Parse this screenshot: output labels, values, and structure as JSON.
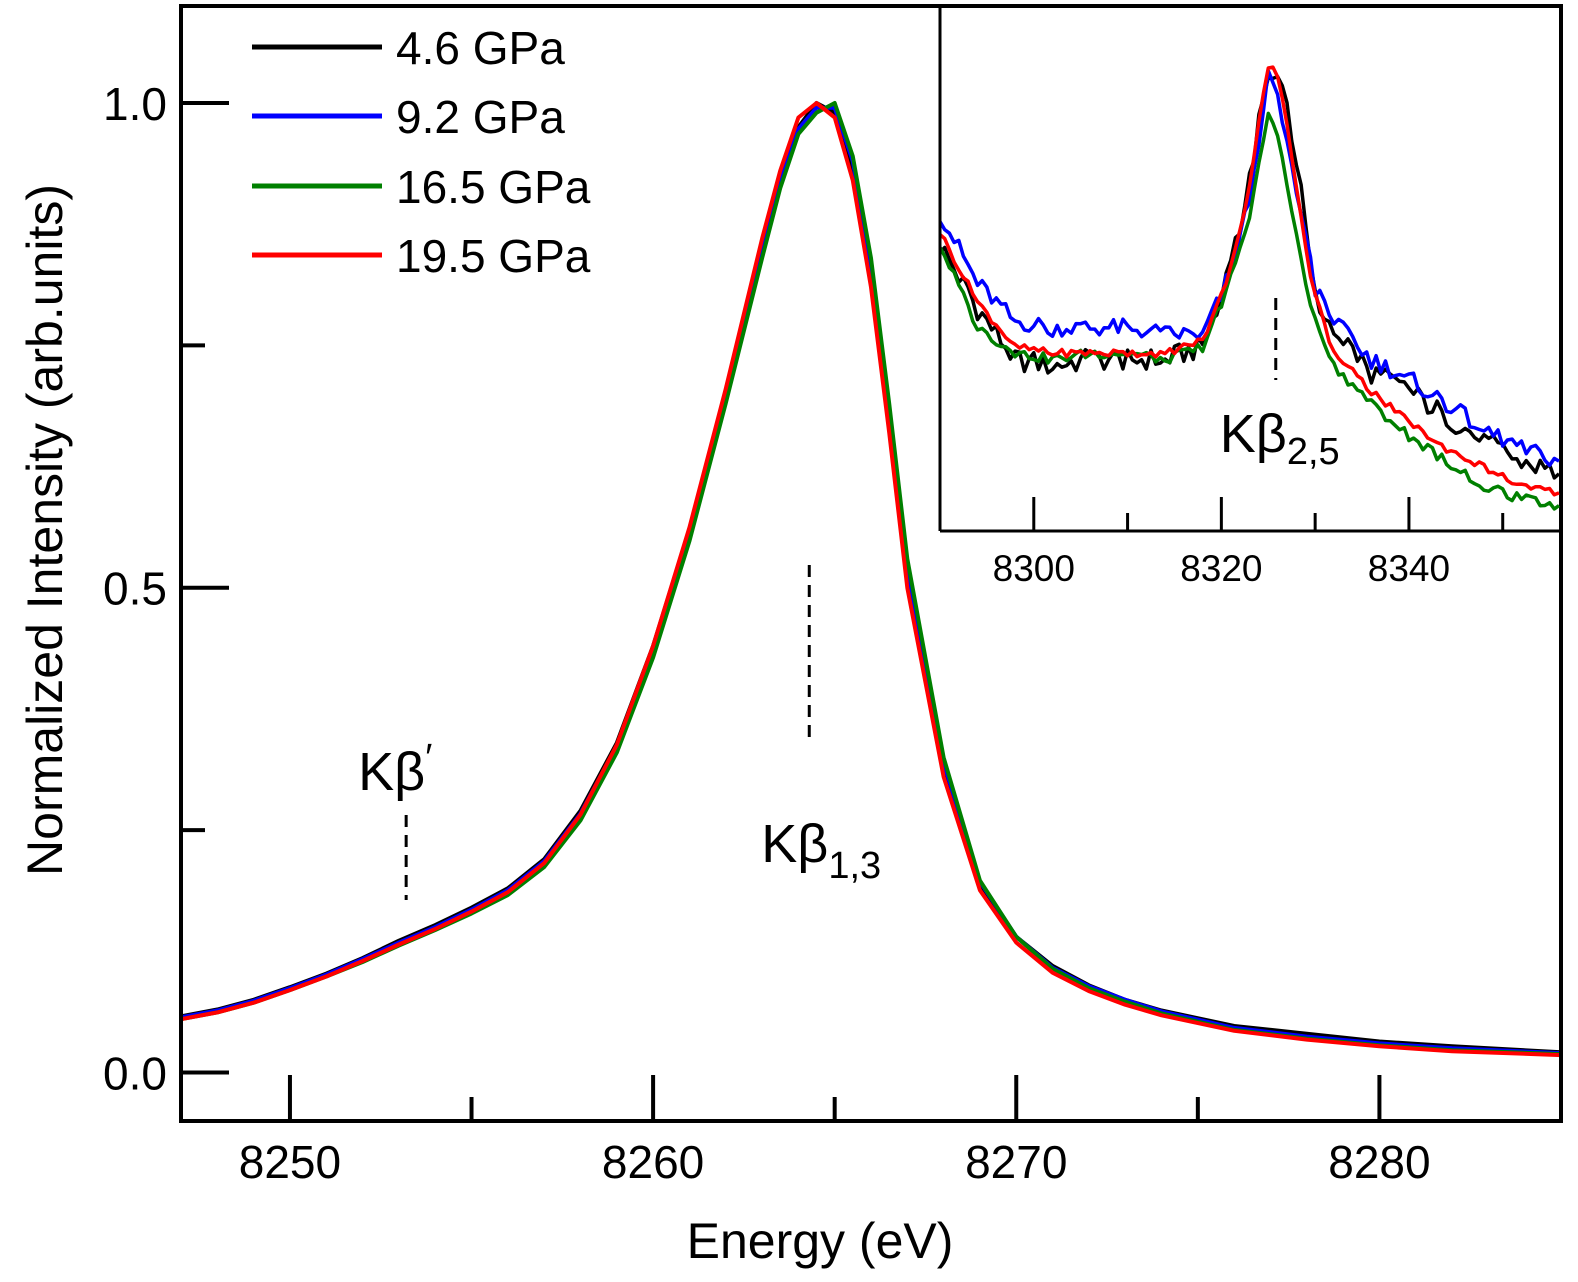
{
  "chart_data": [
    {
      "type": "line",
      "xlabel": "Energy (eV)",
      "ylabel": "Normalized Intensity (arb.units)",
      "xlim": [
        8247,
        8285
      ],
      "ylim": [
        -0.05,
        1.1
      ],
      "x_ticks": [
        8250,
        8260,
        8270,
        8280
      ],
      "x_tick_labels": [
        "8250",
        "8260",
        "8270",
        "8280"
      ],
      "y_ticks": [
        0.0,
        0.5,
        1.0
      ],
      "y_tick_labels": [
        "0.0",
        "0.5",
        "1.0"
      ],
      "grid": false,
      "legend_position": "top-left",
      "x": [
        8247,
        8248,
        8249,
        8250,
        8251,
        8252,
        8253,
        8254,
        8255,
        8256,
        8257,
        8258,
        8259,
        8260,
        8261,
        8262,
        8263,
        8263.5,
        8264,
        8264.5,
        8265,
        8265.5,
        8266,
        8266.5,
        8267,
        8268,
        8269,
        8270,
        8271,
        8272,
        8273,
        8274,
        8276,
        8278,
        8280,
        8282,
        8285
      ],
      "series": [
        {
          "name": "4.6 GPa",
          "color": "#000000",
          "values": [
            0.058,
            0.065,
            0.075,
            0.088,
            0.102,
            0.118,
            0.136,
            0.152,
            0.17,
            0.19,
            0.22,
            0.27,
            0.34,
            0.44,
            0.56,
            0.7,
            0.85,
            0.92,
            0.975,
            1.0,
            0.99,
            0.93,
            0.82,
            0.67,
            0.51,
            0.31,
            0.195,
            0.14,
            0.11,
            0.09,
            0.075,
            0.064,
            0.048,
            0.04,
            0.032,
            0.027,
            0.021
          ]
        },
        {
          "name": "9.2 GPa",
          "color": "#0000ff",
          "values": [
            0.057,
            0.064,
            0.074,
            0.087,
            0.101,
            0.117,
            0.134,
            0.15,
            0.168,
            0.188,
            0.218,
            0.267,
            0.337,
            0.437,
            0.557,
            0.697,
            0.848,
            0.918,
            0.973,
            0.995,
            0.995,
            0.94,
            0.83,
            0.68,
            0.52,
            0.32,
            0.197,
            0.14,
            0.108,
            0.089,
            0.075,
            0.063,
            0.046,
            0.037,
            0.03,
            0.025,
            0.02
          ]
        },
        {
          "name": "16.5 GPa",
          "color": "#008000",
          "values": [
            0.055,
            0.062,
            0.072,
            0.085,
            0.099,
            0.114,
            0.131,
            0.147,
            0.164,
            0.183,
            0.212,
            0.26,
            0.33,
            0.428,
            0.548,
            0.69,
            0.84,
            0.912,
            0.968,
            0.99,
            1.0,
            0.945,
            0.84,
            0.69,
            0.53,
            0.325,
            0.198,
            0.14,
            0.107,
            0.087,
            0.073,
            0.061,
            0.044,
            0.035,
            0.028,
            0.023,
            0.019
          ]
        },
        {
          "name": "19.5 GPa",
          "color": "#ff0000",
          "values": [
            0.055,
            0.062,
            0.072,
            0.085,
            0.099,
            0.115,
            0.132,
            0.148,
            0.166,
            0.186,
            0.216,
            0.266,
            0.338,
            0.44,
            0.562,
            0.705,
            0.86,
            0.93,
            0.985,
            1.0,
            0.985,
            0.92,
            0.81,
            0.66,
            0.5,
            0.305,
            0.188,
            0.134,
            0.103,
            0.084,
            0.07,
            0.059,
            0.043,
            0.034,
            0.027,
            0.022,
            0.018
          ]
        }
      ],
      "annotations": [
        {
          "text": "Kβ",
          "superscript": "′",
          "x": 8253.2
        },
        {
          "text": "Kβ",
          "subscript": "1,3",
          "x": 8264.3
        }
      ]
    },
    {
      "type": "line",
      "inset": true,
      "xlim": [
        8290,
        8356
      ],
      "x_ticks": [
        8300,
        8320,
        8340
      ],
      "x_tick_labels": [
        "8300",
        "8320",
        "8340"
      ],
      "grid": false,
      "x": [
        8290,
        8294,
        8298,
        8302,
        8306,
        8310,
        8314,
        8318,
        8320,
        8322,
        8323,
        8324,
        8325,
        8326,
        8327,
        8328,
        8329,
        8330,
        8332,
        8336,
        8340,
        8344,
        8348,
        8352,
        8356
      ],
      "series": [
        {
          "name": "4.6 GPa",
          "color": "#000000",
          "values": [
            0.055,
            0.045,
            0.037,
            0.036,
            0.037,
            0.037,
            0.037,
            0.039,
            0.048,
            0.058,
            0.066,
            0.074,
            0.082,
            0.083,
            0.078,
            0.068,
            0.058,
            0.047,
            0.042,
            0.035,
            0.032,
            0.028,
            0.024,
            0.021,
            0.019
          ]
        },
        {
          "name": "9.2 GPa",
          "color": "#0000ff",
          "values": [
            0.06,
            0.049,
            0.043,
            0.042,
            0.042,
            0.042,
            0.041,
            0.041,
            0.047,
            0.056,
            0.063,
            0.072,
            0.082,
            0.079,
            0.072,
            0.063,
            0.056,
            0.048,
            0.043,
            0.037,
            0.034,
            0.03,
            0.026,
            0.023,
            0.021
          ]
        },
        {
          "name": "16.5 GPa",
          "color": "#008000",
          "values": [
            0.055,
            0.042,
            0.038,
            0.037,
            0.038,
            0.038,
            0.037,
            0.039,
            0.046,
            0.054,
            0.06,
            0.068,
            0.076,
            0.072,
            0.064,
            0.056,
            0.049,
            0.043,
            0.036,
            0.03,
            0.025,
            0.021,
            0.017,
            0.015,
            0.014
          ]
        },
        {
          "name": "19.5 GPa",
          "color": "#ff0000",
          "values": [
            0.057,
            0.046,
            0.039,
            0.038,
            0.038,
            0.038,
            0.038,
            0.04,
            0.047,
            0.057,
            0.064,
            0.074,
            0.083,
            0.082,
            0.074,
            0.064,
            0.054,
            0.047,
            0.038,
            0.032,
            0.027,
            0.023,
            0.02,
            0.017,
            0.016
          ]
        }
      ],
      "annotations": [
        {
          "text": "Kβ",
          "subscript": "2,5",
          "x": 8325.8
        }
      ]
    }
  ]
}
